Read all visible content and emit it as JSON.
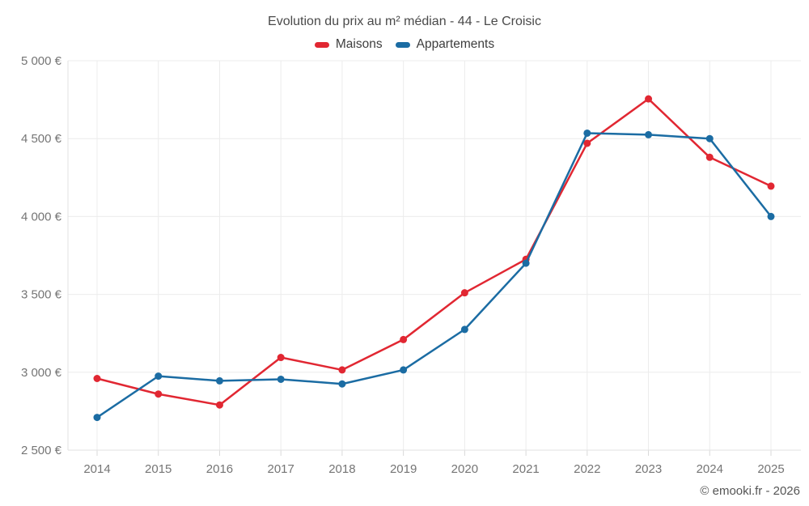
{
  "header": {
    "title": "Evolution du prix au m² médian - 44 - Le Croisic"
  },
  "legend": {
    "items": [
      {
        "label": "Maisons",
        "color": "#e12732"
      },
      {
        "label": "Appartements",
        "color": "#1b6ca3"
      }
    ]
  },
  "footer": {
    "copyright": "© emooki.fr - 2026"
  },
  "chart_data": {
    "type": "line",
    "title": "Evolution du prix au m² médian - 44 - Le Croisic",
    "categories": [
      "2014",
      "2015",
      "2016",
      "2017",
      "2018",
      "2019",
      "2020",
      "2021",
      "2022",
      "2023",
      "2024",
      "2025"
    ],
    "series": [
      {
        "name": "Maisons",
        "color": "#e12732",
        "values": [
          2960,
          2860,
          2790,
          3095,
          3015,
          3210,
          3510,
          3725,
          4470,
          4755,
          4380,
          4195
        ]
      },
      {
        "name": "Appartements",
        "color": "#1b6ca3",
        "values": [
          2710,
          2975,
          2945,
          2955,
          2925,
          3015,
          3275,
          3700,
          4535,
          4525,
          4500,
          4000
        ]
      }
    ],
    "xlabel": "",
    "ylabel": "",
    "ylim": [
      2500,
      5000
    ],
    "y_ticks": [
      {
        "value": 2500,
        "label": "2 500 €"
      },
      {
        "value": 3000,
        "label": "3 000 €"
      },
      {
        "value": 3500,
        "label": "3 500 €"
      },
      {
        "value": 4000,
        "label": "4 000 €"
      },
      {
        "value": 4500,
        "label": "4 500 €"
      },
      {
        "value": 5000,
        "label": "5 000 €"
      }
    ],
    "grid": true,
    "legend_position": "top",
    "marker": "circle"
  }
}
